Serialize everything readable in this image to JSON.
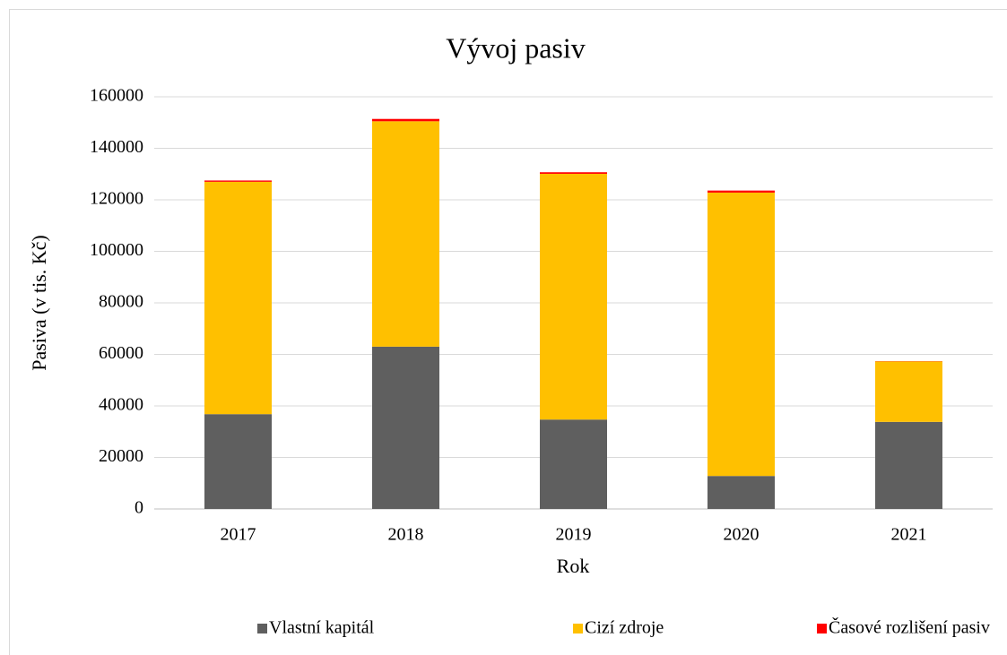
{
  "chart_data": {
    "type": "bar",
    "stacked": true,
    "title": "Vývoj pasiv",
    "x_label": "Rok",
    "y_label": "Pasiva (v tis. Kč)",
    "categories": [
      "2017",
      "2018",
      "2019",
      "2020",
      "2021"
    ],
    "series": [
      {
        "name": "Vlastní kapitál",
        "color": "#5f5f5f",
        "values": [
          36800,
          63000,
          34700,
          12800,
          33800
        ]
      },
      {
        "name": "Cizí zdroje",
        "color": "#ffc000",
        "values": [
          90200,
          87500,
          95400,
          110000,
          23500
        ]
      },
      {
        "name": "Časové rozlišení pasiv",
        "color": "#ff0000",
        "values": [
          500,
          900,
          600,
          800,
          100
        ]
      }
    ],
    "ylim": [
      0,
      160000
    ],
    "yticks": [
      0,
      20000,
      40000,
      60000,
      80000,
      100000,
      120000,
      140000,
      160000
    ],
    "grid": true,
    "legend": "bottom"
  }
}
